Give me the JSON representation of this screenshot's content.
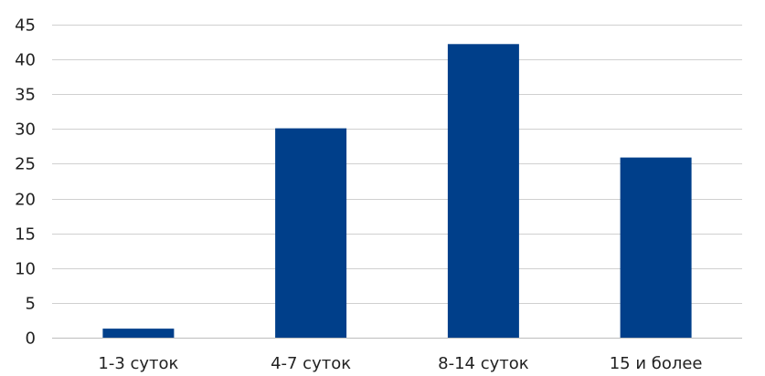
{
  "chart_data": {
    "type": "bar",
    "categories": [
      "1-3 суток",
      "4-7 суток",
      "8-14 суток",
      "15 и более"
    ],
    "values": [
      1.3,
      30.1,
      42.2,
      25.9
    ],
    "ylim": [
      0,
      45
    ],
    "yticks": [
      0,
      5,
      10,
      15,
      20,
      25,
      30,
      35,
      40,
      45
    ],
    "grid": true,
    "legend": "none",
    "bar_color": "#003f8a",
    "gridline_color": "#d0d0d0"
  }
}
